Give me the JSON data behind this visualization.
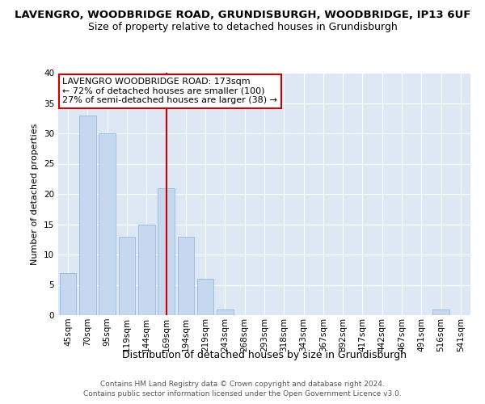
{
  "title": "LAVENGRO, WOODBRIDGE ROAD, GRUNDISBURGH, WOODBRIDGE, IP13 6UF",
  "subtitle": "Size of property relative to detached houses in Grundisburgh",
  "xlabel": "Distribution of detached houses by size in Grundisburgh",
  "ylabel": "Number of detached properties",
  "categories": [
    "45sqm",
    "70sqm",
    "95sqm",
    "119sqm",
    "144sqm",
    "169sqm",
    "194sqm",
    "219sqm",
    "243sqm",
    "268sqm",
    "293sqm",
    "318sqm",
    "343sqm",
    "367sqm",
    "392sqm",
    "417sqm",
    "442sqm",
    "467sqm",
    "491sqm",
    "516sqm",
    "541sqm"
  ],
  "values": [
    7,
    33,
    30,
    13,
    15,
    21,
    13,
    6,
    1,
    0,
    0,
    0,
    0,
    0,
    0,
    0,
    0,
    0,
    0,
    1,
    0
  ],
  "bar_color": "#c5d8f0",
  "bar_edge_color": "#9dbfe0",
  "ref_line_index": 5,
  "ref_line_color": "#cc0000",
  "annotation_line1": "LAVENGRO WOODBRIDGE ROAD: 173sqm",
  "annotation_line2": "← 72% of detached houses are smaller (100)",
  "annotation_line3": "27% of semi-detached houses are larger (38) →",
  "annotation_box_facecolor": "#ffffff",
  "annotation_box_edgecolor": "#cc0000",
  "ylim": [
    0,
    40
  ],
  "yticks": [
    0,
    5,
    10,
    15,
    20,
    25,
    30,
    35,
    40
  ],
  "footer1": "Contains HM Land Registry data © Crown copyright and database right 2024.",
  "footer2": "Contains public sector information licensed under the Open Government Licence v3.0.",
  "plot_bg_color": "#dde8f4",
  "grid_color": "#ffffff",
  "title_fontsize": 9.5,
  "subtitle_fontsize": 9,
  "ylabel_fontsize": 8,
  "xlabel_fontsize": 9,
  "tick_fontsize": 7.5,
  "footer_fontsize": 6.5,
  "annot_fontsize": 8
}
